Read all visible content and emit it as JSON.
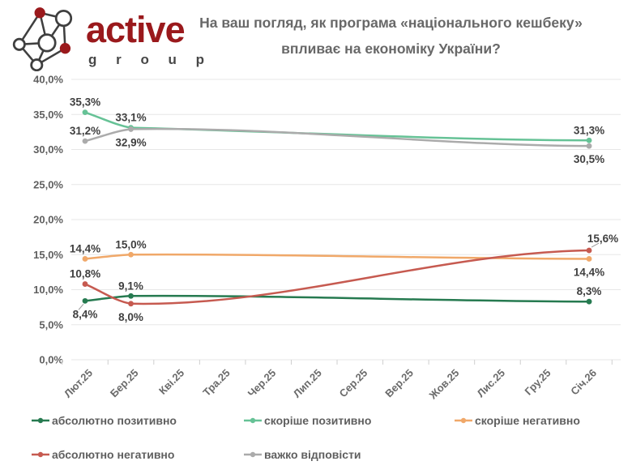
{
  "header": {
    "logo": {
      "title": "active",
      "subtitle": "g r o u p"
    },
    "title": {
      "line1": "На ваш погляд, як програма «національного кешбеку»",
      "line2": "впливає на економіку України?"
    }
  },
  "colors": {
    "brand_red": "#9a191c",
    "title_gray": "#686868",
    "axis_text": "#5f5f5f",
    "xaxis_text": "#6a6a6a",
    "data_label_text": "#3f3f3f",
    "grid": "#e7e7e7",
    "tick": "#cfcfcf",
    "leader": "#9a9a9a"
  },
  "chart_data": {
    "type": "line",
    "title": "На ваш погляд, як програма «національного кешбеку» впливає на економіку України?",
    "categories": [
      "Лют.25",
      "Бер.25",
      "Кві.25",
      "Тра.25",
      "Чер.25",
      "Лип.25",
      "Сер.25",
      "Вер.25",
      "Жов.25",
      "Лис.25",
      "Гру.25",
      "Січ.26"
    ],
    "xlabel": "",
    "ylabel": "",
    "ylim": [
      0,
      40
    ],
    "grid": true,
    "legend_position": "bottom",
    "yticks": [
      {
        "value": 40,
        "label": "40,0%"
      },
      {
        "value": 35,
        "label": "35,0%"
      },
      {
        "value": 30,
        "label": "30,0%"
      },
      {
        "value": 25,
        "label": "25,0%"
      },
      {
        "value": 20,
        "label": "20,0%"
      },
      {
        "value": 15,
        "label": "15,0%"
      },
      {
        "value": 10,
        "label": "10,0%"
      },
      {
        "value": 5,
        "label": "5,0%"
      },
      {
        "value": 0,
        "label": "0,0%"
      }
    ],
    "series": [
      {
        "name": "абсолютно позитивно",
        "color": "#267a50",
        "points": [
          {
            "cat": "Лют.25",
            "v": 8.4,
            "label": "8,4%",
            "pos": "below",
            "leader": true
          },
          {
            "cat": "Бер.25",
            "v": 9.1,
            "label": "9,1%",
            "pos": "above"
          },
          {
            "cat": "Січ.26",
            "v": 8.3,
            "label": "8,3%",
            "pos": "above"
          }
        ]
      },
      {
        "name": "скоріше позитивно",
        "color": "#66c296",
        "points": [
          {
            "cat": "Лют.25",
            "v": 35.3,
            "label": "35,3%",
            "pos": "above"
          },
          {
            "cat": "Бер.25",
            "v": 33.1,
            "label": "33,1%",
            "pos": "above"
          },
          {
            "cat": "Січ.26",
            "v": 31.3,
            "label": "31,3%",
            "pos": "above"
          }
        ]
      },
      {
        "name": "скоріше негативно",
        "color": "#f0a869",
        "points": [
          {
            "cat": "Лют.25",
            "v": 14.4,
            "label": "14,4%",
            "pos": "above"
          },
          {
            "cat": "Бер.25",
            "v": 15.0,
            "label": "15,0%",
            "pos": "above"
          },
          {
            "cat": "Січ.26",
            "v": 14.4,
            "label": "14,4%",
            "pos": "below"
          }
        ]
      },
      {
        "name": "абсолютно негативно",
        "color": "#c65a50",
        "points": [
          {
            "cat": "Лют.25",
            "v": 10.8,
            "label": "10,8%",
            "pos": "above"
          },
          {
            "cat": "Бер.25",
            "v": 8.0,
            "label": "8,0%",
            "pos": "below"
          },
          {
            "cat": "Січ.26",
            "v": 15.6,
            "label": "15,6%",
            "pos": "above-right",
            "leader": true
          }
        ]
      },
      {
        "name": "важко відповісти",
        "color": "#ababab",
        "points": [
          {
            "cat": "Лют.25",
            "v": 31.2,
            "label": "31,2%",
            "pos": "above"
          },
          {
            "cat": "Бер.25",
            "v": 32.9,
            "label": "32,9%",
            "pos": "below"
          },
          {
            "cat": "Січ.26",
            "v": 30.5,
            "label": "30,5%",
            "pos": "below"
          }
        ]
      }
    ],
    "legend_rows": [
      [
        "абсолютно позитивно",
        "скоріше позитивно",
        "скоріше негативно"
      ],
      [
        "абсолютно негативно",
        "важко відповісти"
      ]
    ]
  }
}
